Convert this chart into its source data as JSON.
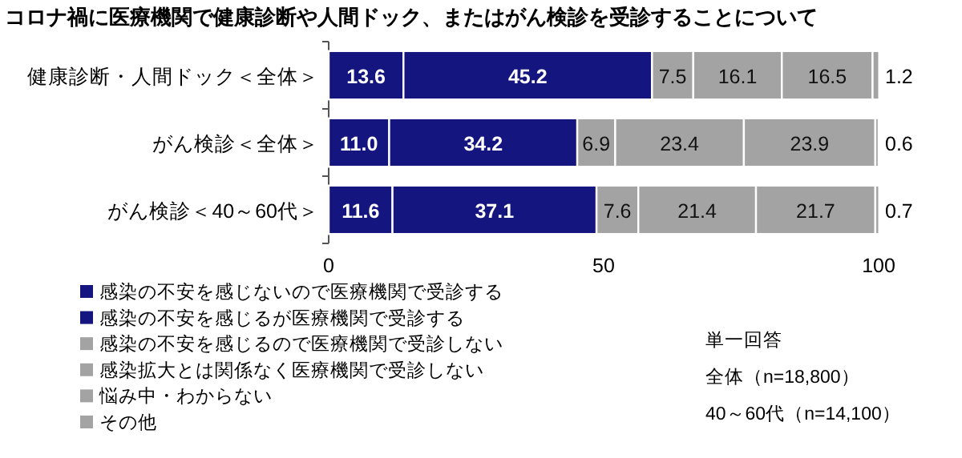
{
  "chart_data": {
    "type": "bar",
    "orientation": "horizontal",
    "stacked": true,
    "title": "コロナ禍に医療機関で健康診断や人間ドック、またはがん検診を受診することについて",
    "categories": [
      "健康診断・人間ドック＜全体＞",
      "がん検診＜全体＞",
      "がん検診＜40～60代＞"
    ],
    "series": [
      {
        "name": "感染の不安を感じないので医療機関で受診する",
        "color": "#15157f",
        "values": [
          13.6,
          11.0,
          11.6
        ],
        "value_labels": [
          "13.6",
          "11.0",
          "11.6"
        ]
      },
      {
        "name": "感染の不安を感じるが医療機関で受診する",
        "color": "#15157f",
        "values": [
          45.2,
          34.2,
          37.1
        ],
        "value_labels": [
          "45.2",
          "34.2",
          "37.1"
        ]
      },
      {
        "name": "感染の不安を感じるので医療機関で受診しない",
        "color": "#a3a3a3",
        "values": [
          7.5,
          6.9,
          7.6
        ],
        "value_labels": [
          "7.5",
          "6.9",
          "7.6"
        ]
      },
      {
        "name": "感染拡大とは関係なく医療機関で受診しない",
        "color": "#a3a3a3",
        "values": [
          16.1,
          23.4,
          21.4
        ],
        "value_labels": [
          "16.1",
          "23.4",
          "21.4"
        ]
      },
      {
        "name": "悩み中・わからない",
        "color": "#a3a3a3",
        "values": [
          16.5,
          23.9,
          21.7
        ],
        "value_labels": [
          "16.5",
          "23.9",
          "21.7"
        ]
      },
      {
        "name": "その他",
        "color": "#a3a3a3",
        "values": [
          1.2,
          0.6,
          0.7
        ],
        "value_labels": [
          "1.2",
          "0.6",
          "0.7"
        ]
      }
    ],
    "xlim": [
      0,
      100
    ],
    "xticks": [
      0,
      50,
      100
    ],
    "legend": "bottom",
    "grid": false,
    "annotations": [
      "単一回答",
      "全体（n=18,800）",
      "40～60代（n=14,100）"
    ]
  }
}
